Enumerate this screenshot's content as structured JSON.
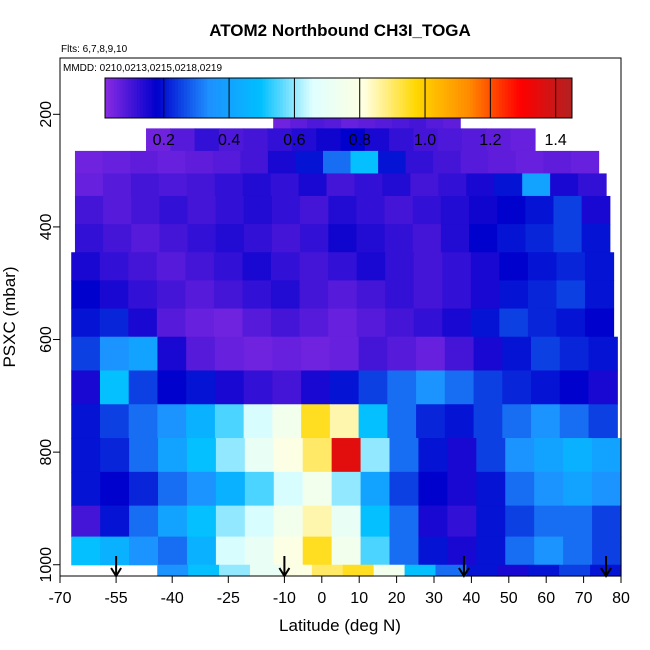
{
  "chart_data": {
    "type": "heatmap",
    "title": "ATOM2 Northbound CH3I_TOGA",
    "flights_note": "Flts: 6,7,8,9,10",
    "dates_note": "MMDD: 0210,0213,0215,0218,0219",
    "xlabel": "Latitude (deg N)",
    "ylabel": "PSXC (mbar)",
    "xlim": [
      -70,
      80
    ],
    "ylim": [
      1020,
      100
    ],
    "x_ticks": [
      -70,
      -55,
      -40,
      -25,
      -10,
      0,
      10,
      20,
      30,
      40,
      50,
      60,
      70,
      80
    ],
    "x_tick_labels": [
      "-70",
      "-55",
      "-40",
      "-25",
      "-10",
      "0",
      "10",
      "20",
      "30",
      "40",
      "50",
      "60",
      "70",
      "80"
    ],
    "y_ticks": [
      200,
      400,
      600,
      800,
      1000
    ],
    "y_tick_labels": [
      "200",
      "400",
      "600",
      "800",
      "1000"
    ],
    "colorbar": {
      "range": [
        0.02,
        1.45
      ],
      "ticks": [
        0.2,
        0.4,
        0.6,
        0.8,
        1.0,
        1.2,
        1.4
      ],
      "tick_labels": [
        "0.2",
        "0.4",
        "0.6",
        "0.8",
        "1.0",
        "1.2",
        "1.4"
      ],
      "colors": [
        "#8a2be2",
        "#0000cd",
        "#1e90ff",
        "#00bfff",
        "#e0ffff",
        "#ffffe0",
        "#ffd700",
        "#ff8c00",
        "#ff0000",
        "#b22222"
      ]
    },
    "profile_markers": [
      -55,
      -10,
      38,
      76
    ],
    "pressure_bands": [
      {
        "p_top": 175,
        "p_bot": 225,
        "lat_start": -13,
        "lat_end": 37,
        "values": [
          0.05,
          0.07,
          0.09,
          0.08,
          0.06,
          0.07,
          0.08,
          0.09,
          0.1,
          0.08,
          0.07
        ]
      },
      {
        "p_top": 225,
        "p_bot": 265,
        "lat_start": -47,
        "lat_end": 57,
        "values": [
          0.05,
          0.08,
          0.12,
          0.09,
          0.1,
          0.12,
          0.14,
          0.16,
          0.18,
          0.15,
          0.12,
          0.1,
          0.09,
          0.08,
          0.07,
          0.06
        ]
      },
      {
        "p_top": 265,
        "p_bot": 305,
        "lat_start": -66,
        "lat_end": 74,
        "values": [
          0.05,
          0.06,
          0.07,
          0.06,
          0.07,
          0.08,
          0.1,
          0.15,
          0.2,
          0.3,
          0.5,
          0.2,
          0.12,
          0.1,
          0.08,
          0.07,
          0.06,
          0.07,
          0.06
        ]
      },
      {
        "p_top": 305,
        "p_bot": 345,
        "lat_start": -66,
        "lat_end": 76,
        "values": [
          0.06,
          0.08,
          0.1,
          0.09,
          0.1,
          0.12,
          0.14,
          0.12,
          0.15,
          0.1,
          0.12,
          0.14,
          0.1,
          0.12,
          0.15,
          0.2,
          0.4,
          0.15,
          0.12
        ]
      },
      {
        "p_top": 345,
        "p_bot": 395,
        "lat_start": -66,
        "lat_end": 77,
        "values": [
          0.1,
          0.08,
          0.1,
          0.12,
          0.1,
          0.12,
          0.14,
          0.12,
          0.1,
          0.14,
          0.12,
          0.1,
          0.12,
          0.14,
          0.16,
          0.18,
          0.2,
          0.25,
          0.15
        ]
      },
      {
        "p_top": 395,
        "p_bot": 445,
        "lat_start": -66,
        "lat_end": 77,
        "values": [
          0.12,
          0.1,
          0.08,
          0.1,
          0.12,
          0.14,
          0.12,
          0.1,
          0.12,
          0.16,
          0.14,
          0.12,
          0.1,
          0.14,
          0.18,
          0.2,
          0.22,
          0.25,
          0.2
        ]
      },
      {
        "p_top": 445,
        "p_bot": 495,
        "lat_start": -67,
        "lat_end": 78,
        "values": [
          0.15,
          0.12,
          0.1,
          0.08,
          0.1,
          0.12,
          0.15,
          0.12,
          0.1,
          0.12,
          0.15,
          0.12,
          0.1,
          0.12,
          0.15,
          0.18,
          0.2,
          0.22,
          0.2
        ]
      },
      {
        "p_top": 495,
        "p_bot": 545,
        "lat_start": -67,
        "lat_end": 78,
        "values": [
          0.18,
          0.15,
          0.12,
          0.1,
          0.08,
          0.1,
          0.12,
          0.14,
          0.1,
          0.08,
          0.1,
          0.12,
          0.1,
          0.12,
          0.15,
          0.2,
          0.22,
          0.25,
          0.2
        ]
      },
      {
        "p_top": 545,
        "p_bot": 595,
        "lat_start": -67,
        "lat_end": 78,
        "values": [
          0.2,
          0.22,
          0.15,
          0.08,
          0.06,
          0.05,
          0.08,
          0.1,
          0.08,
          0.06,
          0.08,
          0.1,
          0.12,
          0.15,
          0.2,
          0.25,
          0.22,
          0.2,
          0.18
        ]
      },
      {
        "p_top": 595,
        "p_bot": 655,
        "lat_start": -67,
        "lat_end": 79,
        "values": [
          0.25,
          0.35,
          0.4,
          0.15,
          0.08,
          0.06,
          0.05,
          0.06,
          0.05,
          0.06,
          0.1,
          0.08,
          0.06,
          0.1,
          0.15,
          0.2,
          0.25,
          0.22,
          0.2
        ]
      },
      {
        "p_top": 655,
        "p_bot": 715,
        "lat_start": -67,
        "lat_end": 79,
        "values": [
          0.15,
          0.5,
          0.25,
          0.18,
          0.2,
          0.15,
          0.12,
          0.1,
          0.15,
          0.2,
          0.25,
          0.3,
          0.35,
          0.3,
          0.25,
          0.22,
          0.2,
          0.18,
          0.15
        ]
      },
      {
        "p_top": 715,
        "p_bot": 775,
        "lat_start": -67,
        "lat_end": 79,
        "values": [
          0.2,
          0.25,
          0.3,
          0.35,
          0.45,
          0.55,
          0.65,
          0.75,
          0.95,
          0.85,
          0.5,
          0.3,
          0.22,
          0.2,
          0.25,
          0.3,
          0.35,
          0.3,
          0.25
        ]
      },
      {
        "p_top": 775,
        "p_bot": 835,
        "lat_start": -67,
        "lat_end": 80,
        "values": [
          0.2,
          0.22,
          0.3,
          0.4,
          0.5,
          0.6,
          0.7,
          0.8,
          0.9,
          1.35,
          0.6,
          0.3,
          0.2,
          0.15,
          0.25,
          0.35,
          0.4,
          0.45,
          0.4
        ]
      },
      {
        "p_top": 835,
        "p_bot": 895,
        "lat_start": -67,
        "lat_end": 80,
        "values": [
          0.2,
          0.18,
          0.22,
          0.3,
          0.35,
          0.45,
          0.55,
          0.65,
          0.75,
          0.6,
          0.4,
          0.25,
          0.18,
          0.15,
          0.2,
          0.3,
          0.35,
          0.4,
          0.35
        ]
      },
      {
        "p_top": 895,
        "p_bot": 950,
        "lat_start": -67,
        "lat_end": 80,
        "values": [
          0.1,
          0.2,
          0.3,
          0.4,
          0.5,
          0.6,
          0.65,
          0.75,
          0.85,
          0.7,
          0.5,
          0.3,
          0.15,
          0.12,
          0.2,
          0.25,
          0.3,
          0.3,
          0.25
        ]
      },
      {
        "p_top": 950,
        "p_bot": 1000,
        "lat_start": -67,
        "lat_end": 80,
        "values": [
          0.5,
          0.45,
          0.35,
          0.3,
          0.45,
          0.65,
          0.7,
          0.8,
          0.95,
          0.75,
          0.55,
          0.3,
          0.2,
          0.15,
          0.2,
          0.3,
          0.35,
          0.3,
          0.25
        ]
      },
      {
        "p_top": 1000,
        "p_bot": 1020,
        "lat_start": -44,
        "lat_end": 80,
        "values": [
          0.35,
          0.5,
          0.6,
          0.7,
          0.8,
          0.9,
          0.95,
          0.75,
          0.5,
          0.3,
          0.2,
          0.15,
          0.2,
          0.25,
          0.2
        ]
      }
    ]
  }
}
